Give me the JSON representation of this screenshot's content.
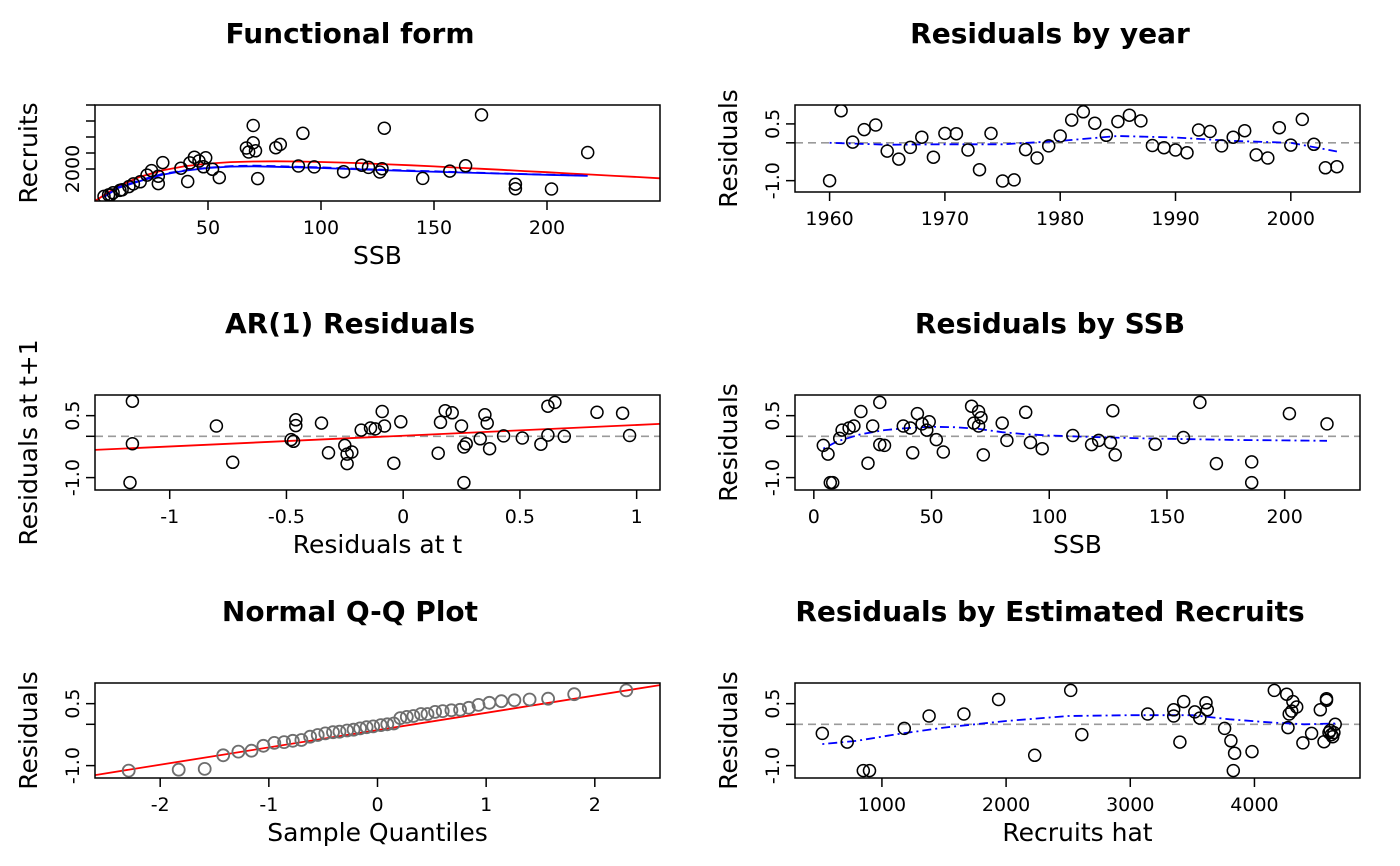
{
  "chart_data": [
    {
      "id": "functional",
      "type": "scatter",
      "title": "Functional form",
      "xlabel": "SSB",
      "ylabel": "Recruits",
      "xlim": [
        0,
        250
      ],
      "ylim": [
        0,
        6000
      ],
      "xticks": [
        50,
        100,
        150,
        200
      ],
      "yticks": [
        2000,
        3000,
        4000,
        5000,
        6000
      ],
      "ytick_labels": [
        "2000",
        "",
        "",
        "",
        ""
      ],
      "points": {
        "x": [
          4,
          6,
          7,
          8,
          11,
          12,
          15,
          17,
          20,
          23,
          25,
          28,
          28,
          30,
          38,
          41,
          42,
          44,
          46,
          48,
          49,
          52,
          55,
          67,
          68,
          70,
          70,
          71,
          72,
          80,
          82,
          90,
          92,
          97,
          110,
          118,
          121,
          126,
          127,
          128,
          145,
          157,
          164,
          171,
          186,
          186,
          202,
          218
        ],
        "y": [
          290,
          380,
          380,
          510,
          660,
          700,
          900,
          1070,
          1200,
          1620,
          1900,
          1090,
          1550,
          2400,
          2050,
          1220,
          2380,
          2740,
          2500,
          2140,
          2700,
          1980,
          1460,
          3310,
          3060,
          4720,
          3640,
          3140,
          1400,
          3330,
          3540,
          2190,
          4230,
          2130,
          1830,
          2240,
          2100,
          1810,
          2020,
          4550,
          1410,
          1870,
          2200,
          5380,
          1050,
          770,
          750,
          3030
        ]
      },
      "lines": [
        {
          "color": "#ff0000",
          "style": "solid",
          "x": [
            0,
            10,
            20,
            30,
            40,
            50,
            60,
            70,
            80,
            90,
            100,
            110,
            120,
            130,
            140,
            150,
            160,
            170,
            180,
            190,
            200,
            210,
            220,
            230,
            240,
            250
          ],
          "y": [
            0,
            900,
            1520,
            1920,
            2180,
            2340,
            2430,
            2470,
            2480,
            2470,
            2440,
            2400,
            2350,
            2290,
            2230,
            2160,
            2090,
            2020,
            1950,
            1870,
            1800,
            1720,
            1650,
            1570,
            1500,
            1420
          ]
        },
        {
          "color": "#0000ff",
          "style": "dashed",
          "x": [
            4,
            10,
            20,
            30,
            40,
            50,
            60,
            70,
            80,
            90,
            100,
            120,
            140,
            160,
            180,
            200,
            218
          ],
          "y": [
            250,
            850,
            1300,
            1700,
            1920,
            2080,
            2180,
            2210,
            2180,
            2140,
            2100,
            1990,
            1900,
            1810,
            1720,
            1650,
            1580
          ]
        },
        {
          "color": "#0000ff",
          "style": "solid",
          "x": [
            4,
            10,
            20,
            30,
            40,
            50,
            60,
            70,
            80,
            90,
            100,
            120,
            140,
            160,
            180,
            200,
            218
          ],
          "y": [
            250,
            800,
            1250,
            1650,
            1900,
            2060,
            2150,
            2170,
            2140,
            2100,
            2060,
            1960,
            1870,
            1790,
            1710,
            1640,
            1570
          ]
        }
      ]
    },
    {
      "id": "byyear",
      "type": "scatter",
      "title": "Residuals by year",
      "xlabel": "",
      "ylabel": "Residuals",
      "xlim": [
        1957,
        2006
      ],
      "ylim": [
        -1.3,
        1.0
      ],
      "xticks": [
        1960,
        1970,
        1980,
        1990,
        2000
      ],
      "yticks": [
        -1.0,
        0,
        0.5
      ],
      "ytick_labels": [
        "-1.0",
        "",
        "0.5"
      ],
      "hline": 0,
      "points": {
        "x": [
          1960,
          1961,
          1962,
          1963,
          1964,
          1965,
          1966,
          1967,
          1968,
          1969,
          1970,
          1971,
          1972,
          1973,
          1974,
          1975,
          1976,
          1977,
          1978,
          1979,
          1980,
          1981,
          1982,
          1983,
          1984,
          1985,
          1986,
          1987,
          1988,
          1989,
          1990,
          1991,
          1992,
          1993,
          1994,
          1995,
          1996,
          1997,
          1998,
          1999,
          2000,
          2001,
          2002,
          2003,
          2004
        ],
        "y": [
          -1.0,
          0.85,
          0.02,
          0.35,
          0.47,
          -0.22,
          -0.43,
          -0.12,
          0.15,
          -0.38,
          0.25,
          0.24,
          -0.19,
          -0.71,
          0.25,
          -1.01,
          -0.98,
          -0.18,
          -0.4,
          -0.08,
          0.18,
          0.6,
          0.82,
          0.52,
          0.2,
          0.56,
          0.73,
          0.58,
          -0.07,
          -0.13,
          -0.19,
          -0.26,
          0.34,
          0.3,
          -0.08,
          0.15,
          0.32,
          -0.32,
          -0.4,
          0.4,
          -0.06,
          0.62,
          -0.04,
          -0.66,
          -0.63
        ]
      },
      "lines": [
        {
          "color": "#0000ff",
          "style": "dotdash",
          "x": [
            1960,
            1965,
            1970,
            1975,
            1980,
            1985,
            1990,
            1995,
            2000,
            2004
          ],
          "y": [
            0.0,
            -0.05,
            -0.04,
            -0.04,
            0.05,
            0.18,
            0.14,
            0.05,
            0.0,
            -0.23
          ]
        }
      ]
    },
    {
      "id": "ar1",
      "type": "scatter",
      "title": "AR(1) Residuals",
      "xlabel": "Residuals at t",
      "ylabel": "Residuals at t+1",
      "xlim": [
        -1.32,
        1.1
      ],
      "ylim": [
        -1.3,
        1.0
      ],
      "xticks": [
        -1.0,
        -0.5,
        0.0,
        0.5,
        1.0
      ],
      "yticks": [
        -1.0,
        0,
        0.5
      ],
      "ytick_labels": [
        "-1.0",
        "",
        "0.5"
      ],
      "hline": 0,
      "points": {
        "x": [
          -1.17,
          -1.16,
          -1.16,
          -0.8,
          -0.73,
          -0.48,
          -0.46,
          -0.46,
          -0.47,
          -0.35,
          -0.32,
          -0.25,
          -0.24,
          -0.24,
          -0.22,
          -0.18,
          -0.14,
          -0.12,
          -0.09,
          -0.08,
          -0.04,
          -0.01,
          0.15,
          0.16,
          0.18,
          0.21,
          0.25,
          0.26,
          0.26,
          0.27,
          0.33,
          0.35,
          0.36,
          0.37,
          0.43,
          0.51,
          0.59,
          0.62,
          0.62,
          0.65,
          0.69,
          0.83,
          0.94,
          0.97
        ],
        "y": [
          -1.12,
          0.85,
          -0.18,
          0.25,
          -0.63,
          -0.08,
          0.4,
          0.26,
          -0.12,
          0.32,
          -0.4,
          -0.22,
          -0.66,
          -0.43,
          -0.38,
          0.15,
          0.2,
          0.18,
          0.6,
          0.25,
          -0.65,
          0.35,
          -0.41,
          0.34,
          0.62,
          0.57,
          0.25,
          -0.26,
          -1.12,
          -0.18,
          -0.06,
          0.52,
          0.32,
          -0.3,
          0.01,
          -0.04,
          -0.19,
          0.73,
          0.03,
          0.82,
          0.0,
          0.58,
          0.56,
          0.02
        ]
      },
      "lines": [
        {
          "color": "#ff0000",
          "style": "solid",
          "x": [
            -1.32,
            1.1
          ],
          "y": [
            -0.33,
            0.3
          ]
        }
      ]
    },
    {
      "id": "byssb",
      "type": "scatter",
      "title": "Residuals by SSB",
      "xlabel": "SSB",
      "ylabel": "Residuals",
      "xlim": [
        -8,
        232
      ],
      "ylim": [
        -1.3,
        1.0
      ],
      "xticks": [
        0,
        50,
        100,
        150,
        200
      ],
      "yticks": [
        -1.0,
        0,
        0.5
      ],
      "ytick_labels": [
        "-1.0",
        "",
        "0.5"
      ],
      "hline": 0,
      "points": {
        "x": [
          4,
          6,
          7,
          8,
          11,
          12,
          15,
          17,
          20,
          23,
          25,
          28,
          28,
          30,
          38,
          41,
          42,
          44,
          46,
          48,
          49,
          52,
          55,
          67,
          68,
          70,
          70,
          71,
          72,
          80,
          82,
          90,
          92,
          97,
          110,
          118,
          121,
          126,
          127,
          128,
          145,
          157,
          164,
          171,
          186,
          186,
          202,
          218
        ],
        "y": [
          -0.22,
          -0.43,
          -1.12,
          -1.12,
          -0.05,
          0.15,
          0.2,
          0.25,
          0.6,
          -0.65,
          0.25,
          0.82,
          -0.2,
          -0.22,
          0.25,
          0.2,
          -0.4,
          0.55,
          0.3,
          0.15,
          0.35,
          -0.08,
          -0.38,
          0.73,
          0.32,
          0.6,
          0.25,
          0.45,
          -0.45,
          0.32,
          -0.1,
          0.58,
          -0.15,
          -0.3,
          0.02,
          -0.2,
          -0.1,
          -0.15,
          0.62,
          -0.45,
          -0.19,
          -0.03,
          0.82,
          -0.66,
          -0.62,
          -1.12,
          0.55,
          0.3
        ]
      },
      "lines": [
        {
          "color": "#0000ff",
          "style": "dotdash",
          "x": [
            4,
            10,
            20,
            30,
            40,
            50,
            60,
            70,
            80,
            90,
            100,
            120,
            140,
            160,
            180,
            200,
            218
          ],
          "y": [
            -0.3,
            -0.12,
            0.05,
            0.15,
            0.2,
            0.23,
            0.22,
            0.18,
            0.1,
            0.05,
            0.02,
            -0.02,
            -0.05,
            -0.07,
            -0.09,
            -0.1,
            -0.11
          ]
        }
      ]
    },
    {
      "id": "qq",
      "type": "scatter",
      "title": "Normal Q-Q Plot",
      "xlabel": "Sample Quantiles",
      "ylabel": "Residuals",
      "xlim": [
        -2.6,
        2.6
      ],
      "ylim": [
        -1.3,
        1.0
      ],
      "xticks": [
        -2,
        -1,
        0,
        1,
        2
      ],
      "yticks": [
        -1.0,
        0,
        0.5
      ],
      "ytick_labels": [
        "-1.0",
        "",
        "0.5"
      ],
      "points": {
        "x": [
          -2.29,
          -1.83,
          -1.59,
          -1.42,
          -1.28,
          -1.16,
          -1.05,
          -0.95,
          -0.86,
          -0.78,
          -0.7,
          -0.62,
          -0.55,
          -0.48,
          -0.41,
          -0.35,
          -0.28,
          -0.22,
          -0.16,
          -0.1,
          -0.04,
          0.03,
          0.09,
          0.15,
          0.21,
          0.27,
          0.33,
          0.4,
          0.46,
          0.53,
          0.6,
          0.68,
          0.76,
          0.84,
          0.93,
          1.03,
          1.14,
          1.26,
          1.4,
          1.57,
          1.81,
          2.29
        ],
        "y": [
          -1.12,
          -1.1,
          -1.08,
          -0.75,
          -0.66,
          -0.64,
          -0.52,
          -0.45,
          -0.43,
          -0.4,
          -0.38,
          -0.3,
          -0.26,
          -0.22,
          -0.19,
          -0.18,
          -0.15,
          -0.13,
          -0.1,
          -0.07,
          -0.05,
          -0.02,
          0.0,
          0.02,
          0.15,
          0.18,
          0.2,
          0.25,
          0.25,
          0.3,
          0.32,
          0.34,
          0.35,
          0.4,
          0.47,
          0.52,
          0.56,
          0.58,
          0.6,
          0.62,
          0.73,
          0.82
        ]
      },
      "point_color": "#6e6e6e",
      "lines": [
        {
          "color": "#ff0000",
          "style": "solid",
          "x": [
            -2.6,
            2.6
          ],
          "y": [
            -1.23,
            0.95
          ]
        }
      ]
    },
    {
      "id": "byhat",
      "type": "scatter",
      "title": "Residuals by Estimated Recruits",
      "xlabel": "Recruits hat",
      "ylabel": "Residuals",
      "xlim": [
        300,
        4850
      ],
      "ylim": [
        -1.3,
        1.0
      ],
      "xticks": [
        1000,
        2000,
        3000,
        4000
      ],
      "yticks": [
        -1.0,
        0,
        0.5
      ],
      "ytick_labels": [
        "-1.0",
        "",
        "0.5"
      ],
      "hline": 0,
      "points": {
        "x": [
          520,
          720,
          850,
          900,
          1180,
          1380,
          1660,
          1940,
          2230,
          2520,
          2610,
          3140,
          3350,
          3350,
          3400,
          3430,
          3520,
          3560,
          3610,
          3620,
          3760,
          3810,
          3830,
          3840,
          3980,
          4160,
          4260,
          4270,
          4280,
          4300,
          4310,
          4340,
          4390,
          4460,
          4530,
          4560,
          4580,
          4580,
          4600,
          4610,
          4620,
          4630,
          4640,
          4650
        ],
        "y": [
          -0.22,
          -0.43,
          -1.12,
          -1.12,
          -0.1,
          0.2,
          0.25,
          0.6,
          -0.75,
          0.82,
          -0.25,
          0.25,
          0.2,
          0.35,
          -0.43,
          0.55,
          0.3,
          0.15,
          0.52,
          0.35,
          -0.1,
          -0.4,
          -1.12,
          -0.7,
          -0.66,
          0.82,
          0.73,
          -0.08,
          0.25,
          0.32,
          0.55,
          0.42,
          -0.45,
          -0.22,
          0.35,
          -0.42,
          0.58,
          0.62,
          -0.2,
          -0.15,
          -0.25,
          -0.3,
          -0.2,
          0.0
        ]
      },
      "lines": [
        {
          "color": "#0000ff",
          "style": "dotdash",
          "x": [
            520,
            800,
            1100,
            1500,
            2000,
            2500,
            3000,
            3500,
            3800,
            4100,
            4400,
            4650
          ],
          "y": [
            -0.48,
            -0.4,
            -0.25,
            -0.08,
            0.08,
            0.2,
            0.22,
            0.22,
            0.12,
            0.05,
            0.0,
            0.02
          ]
        }
      ]
    }
  ]
}
